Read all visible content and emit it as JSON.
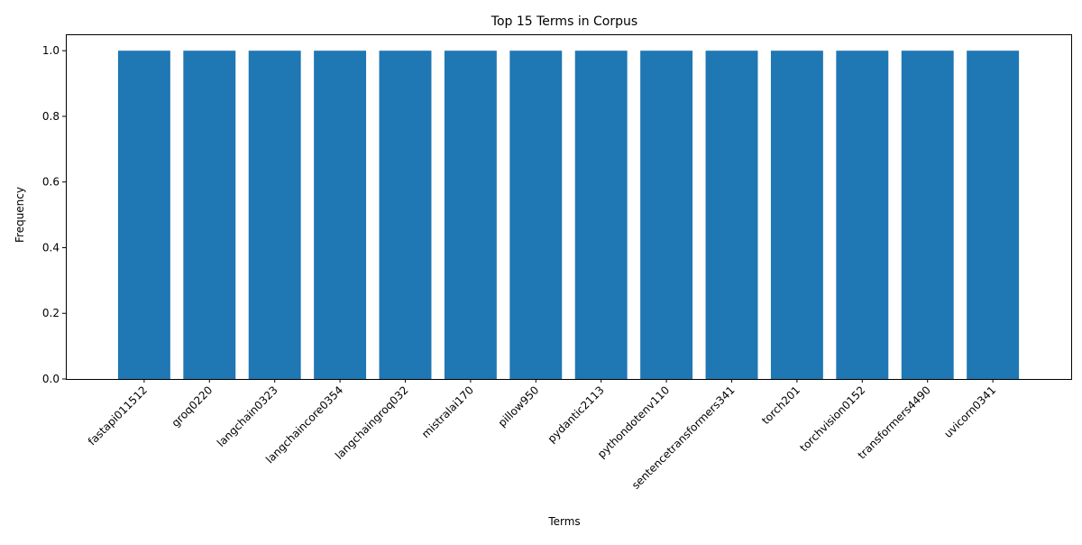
{
  "colors": {
    "bar": "#1f77b4",
    "axis": "#000000",
    "background": "#ffffff"
  },
  "chart_data": {
    "type": "bar",
    "title": "Top 15 Terms in Corpus",
    "xlabel": "Terms",
    "ylabel": "Frequency",
    "categories": [
      "fastapi011512",
      "groq0220",
      "langchain0323",
      "langchaincore0354",
      "langchaingroq032",
      "mistralai170",
      "pillow950",
      "pydantic2113",
      "pythondotenv110",
      "sentencetransformers341",
      "torch201",
      "torchvision0152",
      "transformers4490",
      "uvicorn0341"
    ],
    "values": [
      1,
      1,
      1,
      1,
      1,
      1,
      1,
      1,
      1,
      1,
      1,
      1,
      1,
      1
    ],
    "ylim": [
      0,
      1.05
    ],
    "yticks": [
      "0.0",
      "0.2",
      "0.4",
      "0.6",
      "0.8",
      "1.0"
    ],
    "grid": false,
    "legend": "none"
  }
}
